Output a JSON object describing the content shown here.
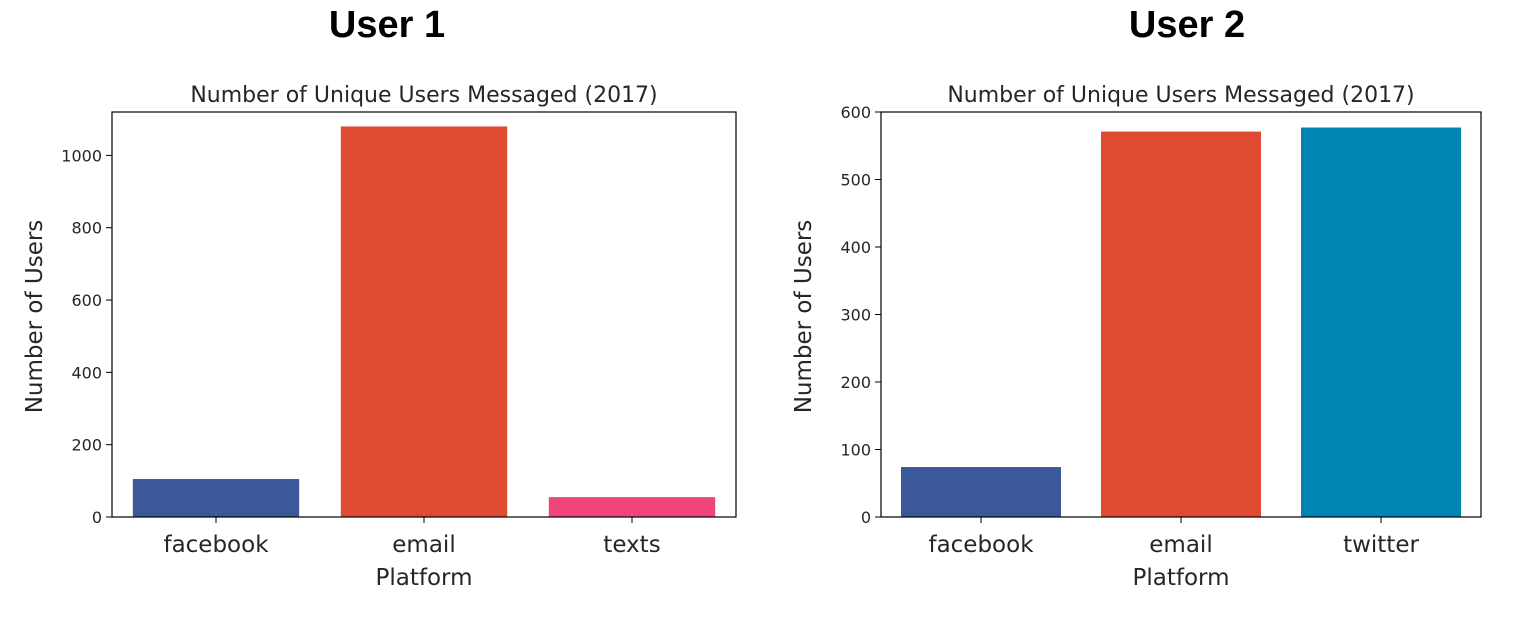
{
  "panels": [
    {
      "heading": "User 1"
    },
    {
      "heading": "User 2"
    }
  ],
  "chart_data": [
    {
      "type": "bar",
      "title": "Number of Unique Users Messaged (2017)",
      "xlabel": "Platform",
      "ylabel": "Number of Users",
      "categories": [
        "facebook",
        "email",
        "texts"
      ],
      "values": [
        105,
        1080,
        55
      ],
      "colors": [
        "#3b5998",
        "#e04a32",
        "#f0457a"
      ],
      "ylim": [
        0,
        1120
      ],
      "yticks": [
        0,
        200,
        400,
        600,
        800,
        1000
      ],
      "grid": false,
      "legend": "none"
    },
    {
      "type": "bar",
      "title": "Number of Unique Users Messaged (2017)",
      "xlabel": "Platform",
      "ylabel": "Number of Users",
      "categories": [
        "facebook",
        "email",
        "twitter"
      ],
      "values": [
        74,
        571,
        577
      ],
      "colors": [
        "#3b5998",
        "#e04a32",
        "#0084b4"
      ],
      "ylim": [
        0,
        600
      ],
      "yticks": [
        0,
        100,
        200,
        300,
        400,
        500,
        600
      ],
      "grid": false,
      "legend": "none"
    }
  ]
}
